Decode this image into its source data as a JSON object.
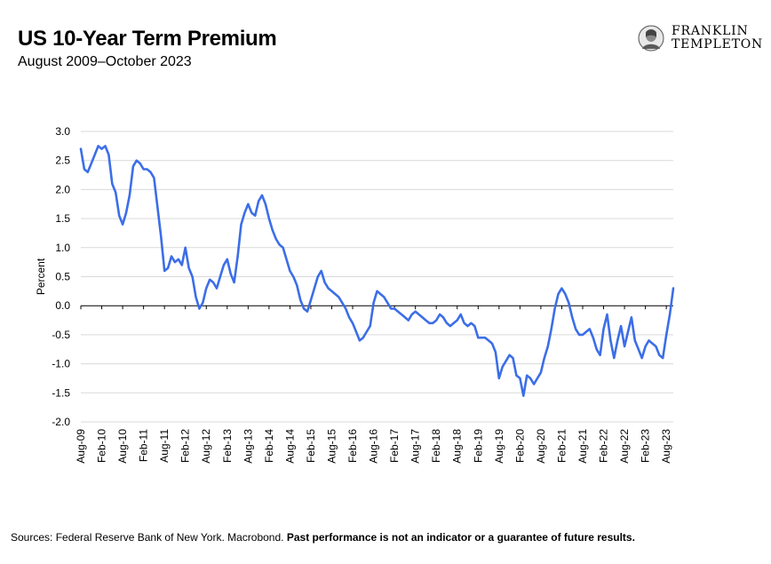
{
  "header": {
    "title": "US 10-Year Term Premium",
    "subtitle": "August 2009–October 2023"
  },
  "logo": {
    "line1": "FRANKLIN",
    "line2": "TEMPLETON"
  },
  "footer": {
    "sources": "Sources: Federal Reserve Bank of New York. Macrobond.",
    "disclaimer": "Past performance is not an indicator or a guarantee of future results."
  },
  "colors": {
    "series": "#3C6EE8",
    "grid": "#d9d9d9",
    "axis": "#000000"
  },
  "chart_data": {
    "type": "line",
    "title": "US 10-Year Term Premium",
    "subtitle": "August 2009–October 2023",
    "xlabel": "",
    "ylabel": "Percent",
    "ylim": [
      -2.0,
      3.0
    ],
    "yticks": [
      "3.0",
      "2.5",
      "2.0",
      "1.5",
      "1.0",
      "0.5",
      "0.0",
      "-0.5",
      "-1.0",
      "-1.5",
      "-2.0"
    ],
    "xticks": [
      "Aug-09",
      "Feb-10",
      "Aug-10",
      "Feb-11",
      "Aug-11",
      "Feb-12",
      "Aug-12",
      "Feb-13",
      "Aug-13",
      "Feb-14",
      "Aug-14",
      "Feb-15",
      "Aug-15",
      "Feb-16",
      "Aug-16",
      "Feb-17",
      "Aug-17",
      "Feb-18",
      "Aug-18",
      "Feb-19",
      "Aug-19",
      "Feb-20",
      "Aug-20",
      "Feb-21",
      "Aug-21",
      "Feb-22",
      "Aug-22",
      "Feb-23",
      "Aug-23"
    ],
    "grid": true,
    "legend": "none",
    "series": [
      {
        "x": [
          "2009-08",
          "2009-09",
          "2009-10",
          "2009-11",
          "2009-12",
          "2010-01",
          "2010-02",
          "2010-03",
          "2010-04",
          "2010-05",
          "2010-06",
          "2010-07",
          "2010-08",
          "2010-09",
          "2010-10",
          "2010-11",
          "2010-12",
          "2011-01",
          "2011-02",
          "2011-03",
          "2011-04",
          "2011-05",
          "2011-06",
          "2011-07",
          "2011-08",
          "2011-09",
          "2011-10",
          "2011-11",
          "2011-12",
          "2012-01",
          "2012-02",
          "2012-03",
          "2012-04",
          "2012-05",
          "2012-06",
          "2012-07",
          "2012-08",
          "2012-09",
          "2012-10",
          "2012-11",
          "2012-12",
          "2013-01",
          "2013-02",
          "2013-03",
          "2013-04",
          "2013-05",
          "2013-06",
          "2013-07",
          "2013-08",
          "2013-09",
          "2013-10",
          "2013-11",
          "2013-12",
          "2014-01",
          "2014-02",
          "2014-03",
          "2014-04",
          "2014-05",
          "2014-06",
          "2014-07",
          "2014-08",
          "2014-09",
          "2014-10",
          "2014-11",
          "2014-12",
          "2015-01",
          "2015-02",
          "2015-03",
          "2015-04",
          "2015-05",
          "2015-06",
          "2015-07",
          "2015-08",
          "2015-09",
          "2015-10",
          "2015-11",
          "2015-12",
          "2016-01",
          "2016-02",
          "2016-03",
          "2016-04",
          "2016-05",
          "2016-06",
          "2016-07",
          "2016-08",
          "2016-09",
          "2016-10",
          "2016-11",
          "2016-12",
          "2017-01",
          "2017-02",
          "2017-03",
          "2017-04",
          "2017-05",
          "2017-06",
          "2017-07",
          "2017-08",
          "2017-09",
          "2017-10",
          "2017-11",
          "2017-12",
          "2018-01",
          "2018-02",
          "2018-03",
          "2018-04",
          "2018-05",
          "2018-06",
          "2018-07",
          "2018-08",
          "2018-09",
          "2018-10",
          "2018-11",
          "2018-12",
          "2019-01",
          "2019-02",
          "2019-03",
          "2019-04",
          "2019-05",
          "2019-06",
          "2019-07",
          "2019-08",
          "2019-09",
          "2019-10",
          "2019-11",
          "2019-12",
          "2020-01",
          "2020-02",
          "2020-03",
          "2020-04",
          "2020-05",
          "2020-06",
          "2020-07",
          "2020-08",
          "2020-09",
          "2020-10",
          "2020-11",
          "2020-12",
          "2021-01",
          "2021-02",
          "2021-03",
          "2021-04",
          "2021-05",
          "2021-06",
          "2021-07",
          "2021-08",
          "2021-09",
          "2021-10",
          "2021-11",
          "2021-12",
          "2022-01",
          "2022-02",
          "2022-03",
          "2022-04",
          "2022-05",
          "2022-06",
          "2022-07",
          "2022-08",
          "2022-09",
          "2022-10",
          "2022-11",
          "2022-12",
          "2023-01",
          "2023-02",
          "2023-03",
          "2023-04",
          "2023-05",
          "2023-06",
          "2023-07",
          "2023-08",
          "2023-09",
          "2023-10"
        ],
        "values": [
          2.7,
          2.35,
          2.3,
          2.45,
          2.6,
          2.75,
          2.7,
          2.75,
          2.6,
          2.1,
          1.95,
          1.55,
          1.4,
          1.6,
          1.9,
          2.4,
          2.5,
          2.45,
          2.35,
          2.35,
          2.3,
          2.2,
          1.7,
          1.2,
          0.6,
          0.65,
          0.85,
          0.75,
          0.8,
          0.7,
          1.0,
          0.65,
          0.5,
          0.15,
          -0.05,
          0.05,
          0.3,
          0.45,
          0.4,
          0.3,
          0.5,
          0.7,
          0.8,
          0.55,
          0.4,
          0.85,
          1.4,
          1.6,
          1.75,
          1.6,
          1.55,
          1.8,
          1.9,
          1.75,
          1.5,
          1.3,
          1.15,
          1.05,
          1.0,
          0.8,
          0.6,
          0.5,
          0.35,
          0.1,
          -0.05,
          -0.1,
          0.1,
          0.3,
          0.5,
          0.6,
          0.4,
          0.3,
          0.25,
          0.2,
          0.15,
          0.05,
          -0.05,
          -0.2,
          -0.3,
          -0.45,
          -0.6,
          -0.55,
          -0.45,
          -0.35,
          0.05,
          0.25,
          0.2,
          0.15,
          0.05,
          -0.05,
          -0.05,
          -0.1,
          -0.15,
          -0.2,
          -0.25,
          -0.15,
          -0.1,
          -0.15,
          -0.2,
          -0.25,
          -0.3,
          -0.3,
          -0.25,
          -0.15,
          -0.2,
          -0.3,
          -0.35,
          -0.3,
          -0.25,
          -0.15,
          -0.3,
          -0.35,
          -0.3,
          -0.35,
          -0.55,
          -0.55,
          -0.55,
          -0.6,
          -0.65,
          -0.8,
          -1.25,
          -1.05,
          -0.95,
          -0.85,
          -0.9,
          -1.2,
          -1.25,
          -1.55,
          -1.2,
          -1.25,
          -1.35,
          -1.25,
          -1.15,
          -0.9,
          -0.7,
          -0.4,
          -0.05,
          0.2,
          0.3,
          0.2,
          0.05,
          -0.2,
          -0.4,
          -0.5,
          -0.5,
          -0.45,
          -0.4,
          -0.55,
          -0.75,
          -0.85,
          -0.4,
          -0.15,
          -0.6,
          -0.9,
          -0.6,
          -0.35,
          -0.7,
          -0.45,
          -0.2,
          -0.6,
          -0.75,
          -0.9,
          -0.7,
          -0.6,
          -0.65,
          -0.7,
          -0.85,
          -0.9,
          -0.5,
          -0.15,
          0.3
        ]
      }
    ]
  }
}
